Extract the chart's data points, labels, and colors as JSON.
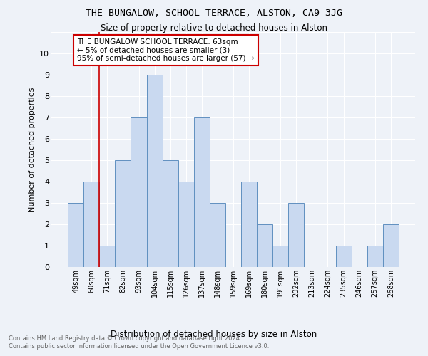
{
  "title": "THE BUNGALOW, SCHOOL TERRACE, ALSTON, CA9 3JG",
  "subtitle": "Size of property relative to detached houses in Alston",
  "xlabel": "Distribution of detached houses by size in Alston",
  "ylabel": "Number of detached properties",
  "bar_labels": [
    "49sqm",
    "60sqm",
    "71sqm",
    "82sqm",
    "93sqm",
    "104sqm",
    "115sqm",
    "126sqm",
    "137sqm",
    "148sqm",
    "159sqm",
    "169sqm",
    "180sqm",
    "191sqm",
    "202sqm",
    "213sqm",
    "224sqm",
    "235sqm",
    "246sqm",
    "257sqm",
    "268sqm"
  ],
  "bar_values": [
    3,
    4,
    1,
    5,
    7,
    9,
    5,
    4,
    7,
    3,
    0,
    4,
    2,
    1,
    3,
    0,
    0,
    1,
    0,
    1,
    2
  ],
  "bar_color": "#c9d9f0",
  "bar_edge_color": "#6090c0",
  "vline_color": "#cc0000",
  "annotation_text": "THE BUNGALOW SCHOOL TERRACE: 63sqm\n← 5% of detached houses are smaller (3)\n95% of semi-detached houses are larger (57) →",
  "annotation_box_color": "#ffffff",
  "annotation_box_edge": "#cc0000",
  "footer1": "Contains HM Land Registry data © Crown copyright and database right 2024.",
  "footer2": "Contains public sector information licensed under the Open Government Licence v3.0.",
  "ylim": [
    0,
    11
  ],
  "yticks": [
    0,
    1,
    2,
    3,
    4,
    5,
    6,
    7,
    8,
    9,
    10,
    11
  ],
  "background_color": "#eef2f8",
  "grid_color": "#ffffff",
  "title_fontsize": 9.5,
  "subtitle_fontsize": 8.5
}
